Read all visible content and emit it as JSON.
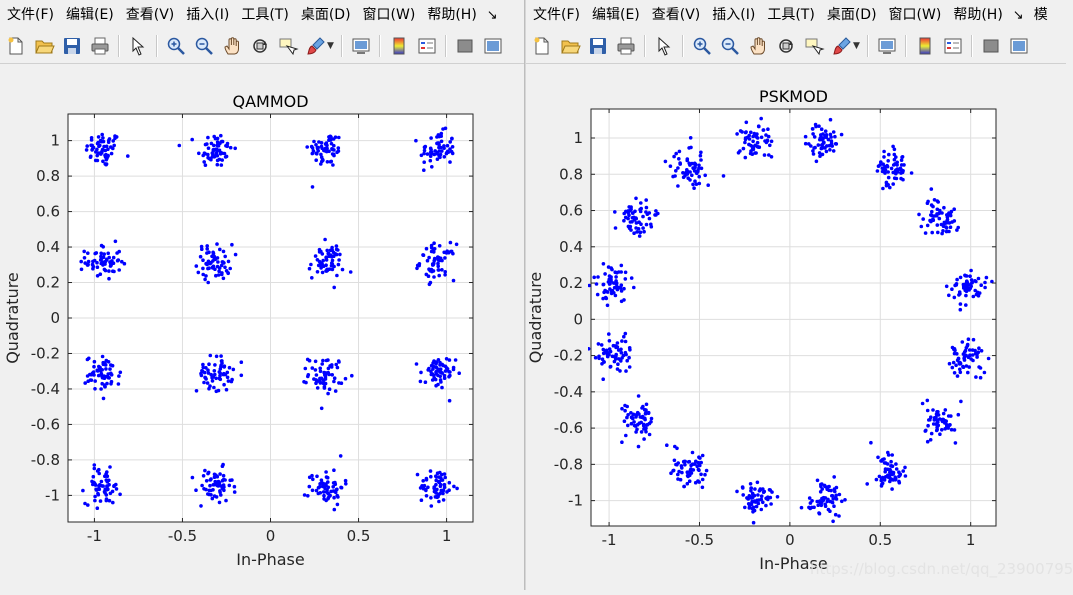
{
  "left_window": {
    "menus": [
      "文件(F)",
      "编辑(E)",
      "查看(V)",
      "插入(I)",
      "工具(T)",
      "桌面(D)",
      "窗口(W)",
      "帮助(H)"
    ],
    "menu_more": "↘"
  },
  "right_window": {
    "menus": [
      "文件(F)",
      "编辑(E)",
      "查看(V)",
      "插入(I)",
      "工具(T)",
      "桌面(D)",
      "窗口(W)",
      "帮助(H)"
    ],
    "menu_more": "↘",
    "menu_extra": "模"
  },
  "toolbar_icons": [
    "new-figure-icon",
    "open-file-icon",
    "save-icon",
    "print-icon",
    "select-arrow-icon",
    "zoom-in-icon",
    "zoom-out-icon",
    "pan-hand-icon",
    "rotate-3d-icon",
    "data-cursor-icon",
    "brush-icon",
    "link-plot-icon",
    "colorbar-icon",
    "legend-icon",
    "hide-plot-tools-icon",
    "show-plot-tools-icon"
  ],
  "watermark": "https://blog.csdn.net/qq_23900795",
  "chart_data": [
    {
      "type": "scatter",
      "title": "QAMMOD",
      "xlabel": "In-Phase",
      "ylabel": "Quadrature",
      "xlim": [
        -1.15,
        1.15
      ],
      "ylim": [
        -1.15,
        1.15
      ],
      "xticks": [
        -1,
        -0.5,
        0,
        0.5,
        1
      ],
      "xtick_labels": [
        "-1",
        "-0.5",
        "0",
        "0.5",
        "1"
      ],
      "yticks": [
        -1,
        -0.8,
        -0.6,
        -0.4,
        -0.2,
        0,
        0.2,
        0.4,
        0.6,
        0.8,
        1
      ],
      "ytick_labels": [
        "-1",
        "-0.8",
        "-0.6",
        "-0.4",
        "-0.2",
        "0",
        "0.2",
        "0.4",
        "0.6",
        "0.8",
        "1"
      ],
      "grid": true,
      "marker_color": "#0000ff",
      "series": [
        {
          "points_per_cluster": 60,
          "spread": 0.05,
          "cluster_centers": [
            [
              -0.949,
              0.949
            ],
            [
              -0.316,
              0.949
            ],
            [
              0.316,
              0.949
            ],
            [
              0.949,
              0.949
            ],
            [
              -0.949,
              0.316
            ],
            [
              -0.316,
              0.316
            ],
            [
              0.316,
              0.316
            ],
            [
              0.949,
              0.316
            ],
            [
              -0.949,
              -0.316
            ],
            [
              -0.316,
              -0.316
            ],
            [
              0.316,
              -0.316
            ],
            [
              0.949,
              -0.316
            ],
            [
              -0.949,
              -0.949
            ],
            [
              -0.316,
              -0.949
            ],
            [
              0.316,
              -0.949
            ],
            [
              0.949,
              -0.949
            ]
          ]
        }
      ]
    },
    {
      "type": "scatter",
      "title": "PSKMOD",
      "xlabel": "In-Phase",
      "ylabel": "Quadrature",
      "xlim": [
        -1.1,
        1.14
      ],
      "ylim": [
        -1.14,
        1.16
      ],
      "xticks": [
        -1,
        -0.5,
        0,
        0.5,
        1
      ],
      "xtick_labels": [
        "-1",
        "-0.5",
        "0",
        "0.5",
        "1"
      ],
      "yticks": [
        -1,
        -0.8,
        -0.6,
        -0.4,
        -0.2,
        0,
        0.2,
        0.4,
        0.6,
        0.8,
        1
      ],
      "ytick_labels": [
        "-1",
        "-0.8",
        "-0.6",
        "-0.4",
        "-0.2",
        "0",
        "0.2",
        "0.4",
        "0.6",
        "0.8",
        "1"
      ],
      "grid": true,
      "marker_color": "#0000ff",
      "series": [
        {
          "points_per_cluster": 60,
          "spread": 0.05,
          "cluster_centers": [
            [
              0.981,
              0.195
            ],
            [
              0.831,
              0.556
            ],
            [
              0.556,
              0.831
            ],
            [
              0.195,
              0.981
            ],
            [
              -0.195,
              0.981
            ],
            [
              -0.556,
              0.831
            ],
            [
              -0.831,
              0.556
            ],
            [
              -0.981,
              0.195
            ],
            [
              -0.981,
              -0.195
            ],
            [
              -0.831,
              -0.556
            ],
            [
              -0.556,
              -0.831
            ],
            [
              -0.195,
              -0.981
            ],
            [
              0.195,
              -0.981
            ],
            [
              0.556,
              -0.831
            ],
            [
              0.831,
              -0.556
            ],
            [
              0.981,
              -0.195
            ]
          ]
        }
      ]
    }
  ]
}
